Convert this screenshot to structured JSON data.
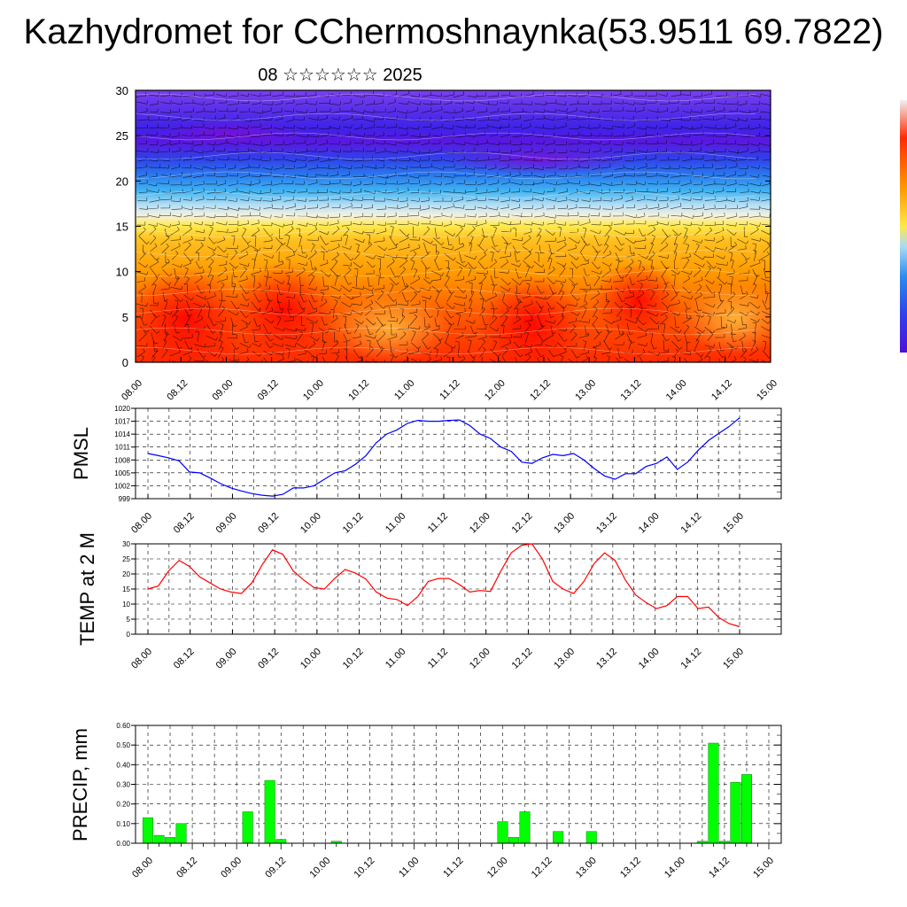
{
  "title": "Kazhydromet for CChermoshnaynka(53.9511 69.7822)",
  "subtitle": "08 ☆☆☆☆☆☆ 2025",
  "x_tick_labels": [
    "08.00",
    "08.12",
    "09.00",
    "09.12",
    "10.00",
    "10.12",
    "11.00",
    "11.12",
    "12.00",
    "12.12",
    "13.00",
    "13.12",
    "14.00",
    "14.12",
    "15.00"
  ],
  "colors": {
    "pmsl_line": "#0000ff",
    "temp_line": "#ff0000",
    "precip_bar": "#00ff00",
    "precip_bar_edge": "#008800",
    "axis": "#000000",
    "grid": "#000000"
  },
  "chart_data": [
    {
      "id": "height-time-section",
      "type": "heatmap",
      "title": "",
      "xlabel": "",
      "ylabel": "",
      "ylim": [
        0,
        30
      ],
      "y_ticks": [
        0,
        5,
        10,
        15,
        20,
        25,
        30
      ],
      "x": [
        "08.00",
        "08.12",
        "09.00",
        "09.12",
        "10.00",
        "10.12",
        "11.00",
        "11.12",
        "12.00",
        "12.12",
        "13.00",
        "13.12",
        "14.00",
        "14.12",
        "15.00"
      ],
      "overlay": "wind barbs and streamlines",
      "colormap": [
        "#ff1a00",
        "#ff6a00",
        "#ffb000",
        "#ffe84a",
        "#f5f5f0",
        "#a8dcf5",
        "#30aaf0",
        "#2060ee",
        "#3020e8",
        "#6a10e0"
      ],
      "description_bands": "warm (red/orange) near surface, yellow ~15, light blue ~17-19, blue ~20-23, violet ~24-30"
    },
    {
      "id": "pmsl",
      "type": "line",
      "ylabel": "PMSL",
      "ylim": [
        999,
        1020
      ],
      "y_ticks": [
        999,
        1002,
        1005,
        1008,
        1011,
        1014,
        1017,
        1020
      ],
      "grid": true,
      "series": [
        {
          "values": [
            1009.5,
            1009,
            1008.5,
            1007.8,
            1005.2,
            1005,
            1003.8,
            1002.5,
            1001.5,
            1000.8,
            1000.2,
            999.8,
            999.6,
            1000,
            1001.5,
            1001.5,
            1002,
            1003.5,
            1005,
            1005.5,
            1007,
            1009,
            1012,
            1014,
            1015,
            1016.5,
            1017.2,
            1017,
            1017,
            1017.2,
            1017.3,
            1016,
            1014,
            1013,
            1011,
            1010,
            1007.5,
            1007.2,
            1008.5,
            1009.3,
            1009,
            1009.5,
            1008,
            1006,
            1004.3,
            1003.5,
            1004.8,
            1004.8,
            1006.5,
            1007.2,
            1008.7,
            1005.8,
            1007.5,
            1010.2,
            1012.5,
            1014.2,
            1015.8,
            1017.8
          ]
        }
      ]
    },
    {
      "id": "temp",
      "type": "line",
      "ylabel": "TEMP at 2 M",
      "ylim": [
        0,
        30
      ],
      "y_ticks": [
        0,
        5,
        10,
        15,
        20,
        25,
        30
      ],
      "grid": true,
      "series": [
        {
          "values": [
            15,
            16,
            21,
            24.5,
            22.5,
            19,
            17,
            15,
            14,
            13.5,
            17,
            23,
            28,
            26.5,
            21,
            18,
            15.5,
            15,
            18.5,
            21.5,
            20.3,
            18.3,
            14,
            12,
            11.5,
            9.5,
            12.5,
            17.5,
            18.5,
            18.5,
            16.5,
            14,
            14.5,
            14.2,
            21,
            27,
            29.5,
            30,
            25,
            17.5,
            15,
            13.5,
            17.5,
            23.5,
            27,
            24.5,
            18,
            13,
            10.5,
            8.5,
            9.5,
            12.5,
            12.5,
            8.5,
            9,
            5.5,
            3.5,
            2.5
          ]
        }
      ]
    },
    {
      "id": "precip",
      "type": "bar",
      "ylabel": "PRECIP, mm",
      "ylim": [
        0,
        0.6
      ],
      "y_ticks": [
        "0.00",
        "0.10",
        "0.20",
        "0.30",
        "0.40",
        "0.50",
        "0.60"
      ],
      "grid": true,
      "bar_slot_hours": 3,
      "values": [
        0.13,
        0.04,
        0.03,
        0.1,
        0,
        0,
        0,
        0,
        0,
        0.16,
        0,
        0.32,
        0.02,
        0,
        0,
        0,
        0,
        0.01,
        0,
        0,
        0,
        0,
        0,
        0,
        0,
        0,
        0,
        0,
        0,
        0,
        0,
        0,
        0.11,
        0.03,
        0.16,
        0,
        0,
        0.06,
        0,
        0,
        0.06,
        0,
        0,
        0,
        0,
        0,
        0,
        0,
        0,
        0,
        0.01,
        0.51,
        0.01,
        0.31,
        0.35,
        0
      ]
    }
  ]
}
